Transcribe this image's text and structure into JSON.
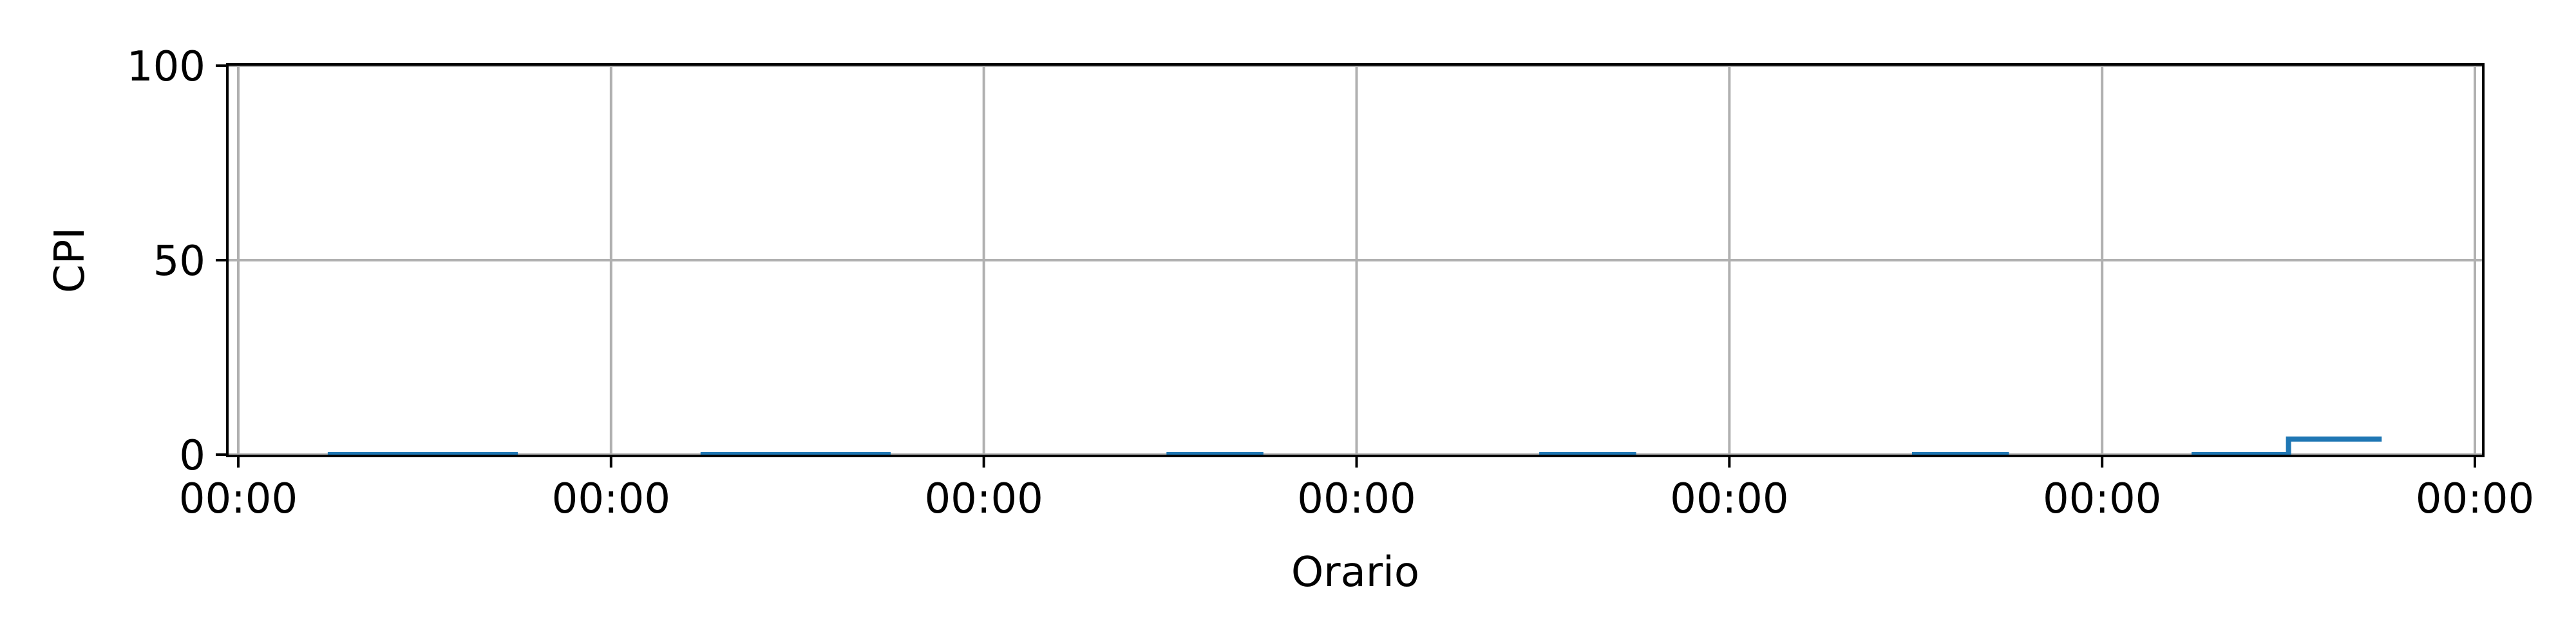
{
  "chart_data": {
    "type": "line",
    "title": "",
    "xlabel": "Orario",
    "ylabel": "CPI",
    "x_ticks": [
      "00:00",
      "00:00",
      "00:00",
      "00:00",
      "00:00",
      "00:00",
      "00:00"
    ],
    "y_ticks": [
      0,
      50,
      100
    ],
    "xlim": [
      0,
      6
    ],
    "ylim": [
      0,
      100
    ],
    "grid": true,
    "series": [
      {
        "color": "#1f77b4",
        "step": true,
        "segments": [
          [
            [
              0.24,
              0
            ],
            [
              0.75,
              0
            ]
          ],
          [
            [
              1.24,
              0
            ],
            [
              1.75,
              0
            ]
          ],
          [
            [
              2.49,
              0
            ],
            [
              2.75,
              0
            ]
          ],
          [
            [
              3.49,
              0
            ],
            [
              3.75,
              0
            ]
          ],
          [
            [
              4.49,
              0
            ],
            [
              4.75,
              0
            ]
          ],
          [
            [
              5.24,
              0
            ],
            [
              5.5,
              0
            ],
            [
              5.5,
              4
            ],
            [
              5.75,
              4
            ]
          ]
        ]
      }
    ]
  }
}
